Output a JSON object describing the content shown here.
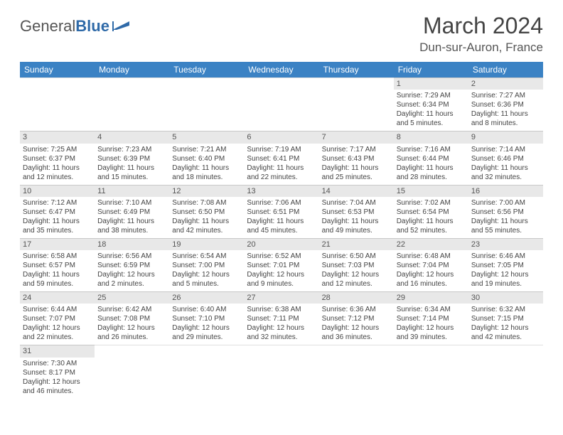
{
  "logo": {
    "part1": "General",
    "part2": "Blue"
  },
  "title": "March 2024",
  "location": "Dun-sur-Auron, France",
  "colors": {
    "header_bg": "#3b82c4",
    "header_fg": "#ffffff",
    "daynum_bg": "#e8e8e8",
    "text": "#444444",
    "logo_accent": "#2f6aa8"
  },
  "weekdays": [
    "Sunday",
    "Monday",
    "Tuesday",
    "Wednesday",
    "Thursday",
    "Friday",
    "Saturday"
  ],
  "weeks": [
    [
      {
        "n": "",
        "lines": []
      },
      {
        "n": "",
        "lines": []
      },
      {
        "n": "",
        "lines": []
      },
      {
        "n": "",
        "lines": []
      },
      {
        "n": "",
        "lines": []
      },
      {
        "n": "1",
        "lines": [
          "Sunrise: 7:29 AM",
          "Sunset: 6:34 PM",
          "Daylight: 11 hours and 5 minutes."
        ]
      },
      {
        "n": "2",
        "lines": [
          "Sunrise: 7:27 AM",
          "Sunset: 6:36 PM",
          "Daylight: 11 hours and 8 minutes."
        ]
      }
    ],
    [
      {
        "n": "3",
        "lines": [
          "Sunrise: 7:25 AM",
          "Sunset: 6:37 PM",
          "Daylight: 11 hours and 12 minutes."
        ]
      },
      {
        "n": "4",
        "lines": [
          "Sunrise: 7:23 AM",
          "Sunset: 6:39 PM",
          "Daylight: 11 hours and 15 minutes."
        ]
      },
      {
        "n": "5",
        "lines": [
          "Sunrise: 7:21 AM",
          "Sunset: 6:40 PM",
          "Daylight: 11 hours and 18 minutes."
        ]
      },
      {
        "n": "6",
        "lines": [
          "Sunrise: 7:19 AM",
          "Sunset: 6:41 PM",
          "Daylight: 11 hours and 22 minutes."
        ]
      },
      {
        "n": "7",
        "lines": [
          "Sunrise: 7:17 AM",
          "Sunset: 6:43 PM",
          "Daylight: 11 hours and 25 minutes."
        ]
      },
      {
        "n": "8",
        "lines": [
          "Sunrise: 7:16 AM",
          "Sunset: 6:44 PM",
          "Daylight: 11 hours and 28 minutes."
        ]
      },
      {
        "n": "9",
        "lines": [
          "Sunrise: 7:14 AM",
          "Sunset: 6:46 PM",
          "Daylight: 11 hours and 32 minutes."
        ]
      }
    ],
    [
      {
        "n": "10",
        "lines": [
          "Sunrise: 7:12 AM",
          "Sunset: 6:47 PM",
          "Daylight: 11 hours and 35 minutes."
        ]
      },
      {
        "n": "11",
        "lines": [
          "Sunrise: 7:10 AM",
          "Sunset: 6:49 PM",
          "Daylight: 11 hours and 38 minutes."
        ]
      },
      {
        "n": "12",
        "lines": [
          "Sunrise: 7:08 AM",
          "Sunset: 6:50 PM",
          "Daylight: 11 hours and 42 minutes."
        ]
      },
      {
        "n": "13",
        "lines": [
          "Sunrise: 7:06 AM",
          "Sunset: 6:51 PM",
          "Daylight: 11 hours and 45 minutes."
        ]
      },
      {
        "n": "14",
        "lines": [
          "Sunrise: 7:04 AM",
          "Sunset: 6:53 PM",
          "Daylight: 11 hours and 49 minutes."
        ]
      },
      {
        "n": "15",
        "lines": [
          "Sunrise: 7:02 AM",
          "Sunset: 6:54 PM",
          "Daylight: 11 hours and 52 minutes."
        ]
      },
      {
        "n": "16",
        "lines": [
          "Sunrise: 7:00 AM",
          "Sunset: 6:56 PM",
          "Daylight: 11 hours and 55 minutes."
        ]
      }
    ],
    [
      {
        "n": "17",
        "lines": [
          "Sunrise: 6:58 AM",
          "Sunset: 6:57 PM",
          "Daylight: 11 hours and 59 minutes."
        ]
      },
      {
        "n": "18",
        "lines": [
          "Sunrise: 6:56 AM",
          "Sunset: 6:59 PM",
          "Daylight: 12 hours and 2 minutes."
        ]
      },
      {
        "n": "19",
        "lines": [
          "Sunrise: 6:54 AM",
          "Sunset: 7:00 PM",
          "Daylight: 12 hours and 5 minutes."
        ]
      },
      {
        "n": "20",
        "lines": [
          "Sunrise: 6:52 AM",
          "Sunset: 7:01 PM",
          "Daylight: 12 hours and 9 minutes."
        ]
      },
      {
        "n": "21",
        "lines": [
          "Sunrise: 6:50 AM",
          "Sunset: 7:03 PM",
          "Daylight: 12 hours and 12 minutes."
        ]
      },
      {
        "n": "22",
        "lines": [
          "Sunrise: 6:48 AM",
          "Sunset: 7:04 PM",
          "Daylight: 12 hours and 16 minutes."
        ]
      },
      {
        "n": "23",
        "lines": [
          "Sunrise: 6:46 AM",
          "Sunset: 7:05 PM",
          "Daylight: 12 hours and 19 minutes."
        ]
      }
    ],
    [
      {
        "n": "24",
        "lines": [
          "Sunrise: 6:44 AM",
          "Sunset: 7:07 PM",
          "Daylight: 12 hours and 22 minutes."
        ]
      },
      {
        "n": "25",
        "lines": [
          "Sunrise: 6:42 AM",
          "Sunset: 7:08 PM",
          "Daylight: 12 hours and 26 minutes."
        ]
      },
      {
        "n": "26",
        "lines": [
          "Sunrise: 6:40 AM",
          "Sunset: 7:10 PM",
          "Daylight: 12 hours and 29 minutes."
        ]
      },
      {
        "n": "27",
        "lines": [
          "Sunrise: 6:38 AM",
          "Sunset: 7:11 PM",
          "Daylight: 12 hours and 32 minutes."
        ]
      },
      {
        "n": "28",
        "lines": [
          "Sunrise: 6:36 AM",
          "Sunset: 7:12 PM",
          "Daylight: 12 hours and 36 minutes."
        ]
      },
      {
        "n": "29",
        "lines": [
          "Sunrise: 6:34 AM",
          "Sunset: 7:14 PM",
          "Daylight: 12 hours and 39 minutes."
        ]
      },
      {
        "n": "30",
        "lines": [
          "Sunrise: 6:32 AM",
          "Sunset: 7:15 PM",
          "Daylight: 12 hours and 42 minutes."
        ]
      }
    ],
    [
      {
        "n": "31",
        "lines": [
          "Sunrise: 7:30 AM",
          "Sunset: 8:17 PM",
          "Daylight: 12 hours and 46 minutes."
        ]
      },
      {
        "n": "",
        "lines": []
      },
      {
        "n": "",
        "lines": []
      },
      {
        "n": "",
        "lines": []
      },
      {
        "n": "",
        "lines": []
      },
      {
        "n": "",
        "lines": []
      },
      {
        "n": "",
        "lines": []
      }
    ]
  ]
}
